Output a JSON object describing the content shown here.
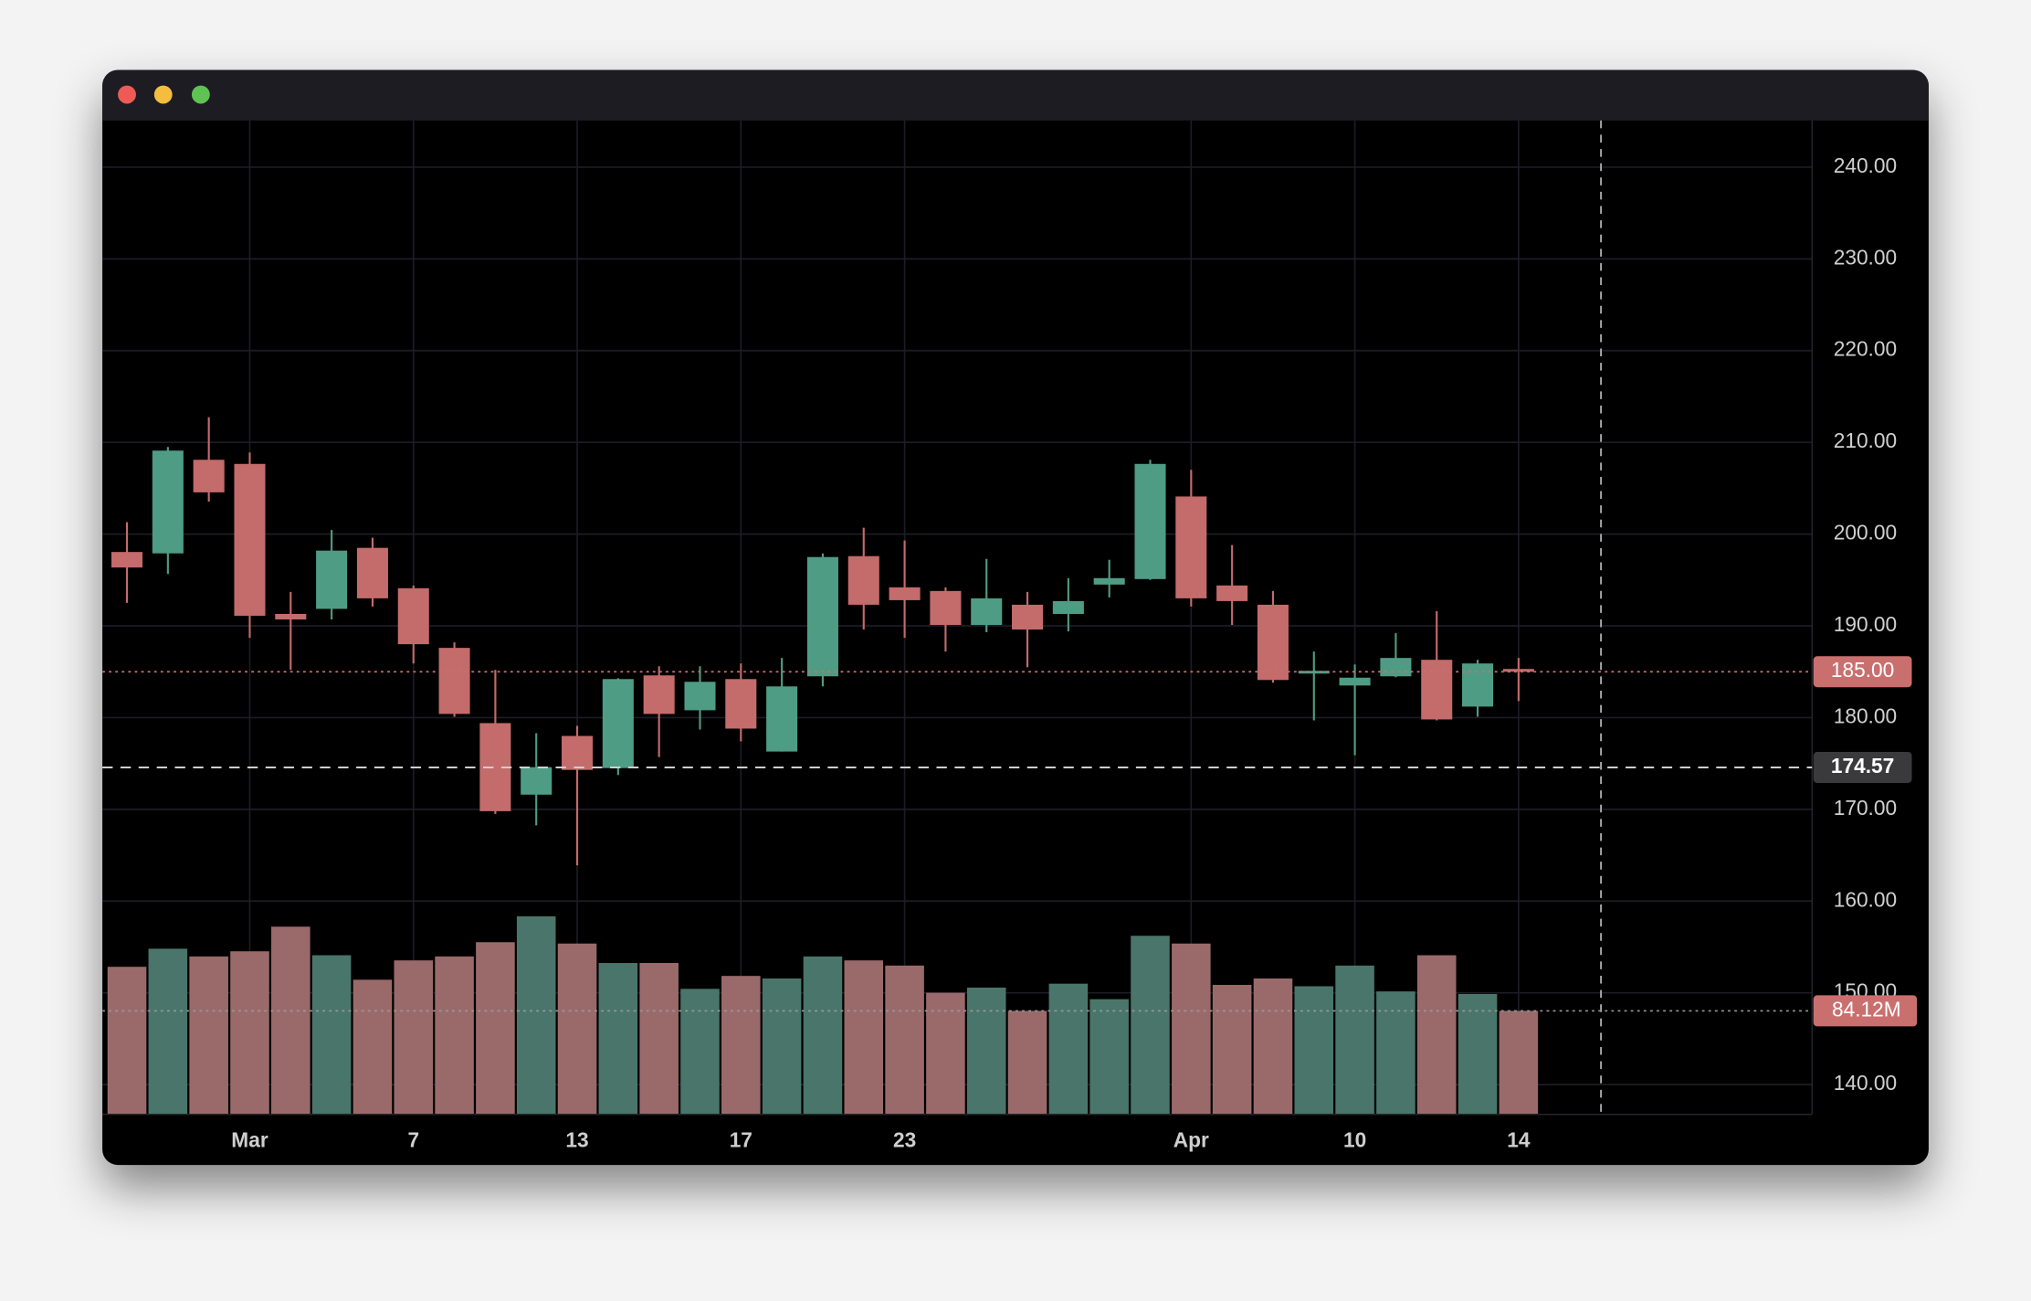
{
  "chart_data": {
    "type": "candlestick",
    "categories": [
      null,
      null,
      null,
      "Mar",
      null,
      null,
      null,
      "7",
      null,
      null,
      null,
      "13",
      null,
      null,
      null,
      "17",
      null,
      null,
      null,
      "23",
      null,
      null,
      null,
      null,
      null,
      null,
      "Apr",
      null,
      null,
      null,
      "10",
      null,
      null,
      null,
      "14"
    ],
    "open": [
      198.05,
      197.9,
      208.1,
      207.65,
      191.3,
      191.85,
      198.5,
      194.1,
      187.6,
      179.4,
      171.6,
      178.0,
      174.5,
      184.6,
      180.8,
      184.2,
      176.3,
      184.5,
      197.6,
      194.2,
      193.8,
      190.1,
      192.3,
      191.3,
      194.5,
      195.1,
      204.1,
      194.4,
      192.3,
      184.8,
      183.5,
      184.5,
      186.3,
      181.2,
      185.3
    ],
    "high": [
      201.3,
      209.5,
      212.75,
      208.9,
      193.7,
      200.45,
      199.6,
      194.4,
      188.2,
      185.2,
      178.3,
      179.1,
      184.3,
      185.6,
      185.6,
      185.9,
      186.5,
      197.9,
      200.7,
      199.3,
      194.2,
      197.3,
      193.7,
      195.2,
      197.2,
      208.1,
      207.0,
      198.8,
      193.8,
      187.2,
      185.8,
      189.2,
      191.6,
      186.3,
      186.5
    ],
    "low": [
      192.5,
      195.65,
      203.55,
      188.7,
      185.2,
      190.7,
      192.1,
      185.9,
      180.1,
      169.5,
      168.25,
      163.9,
      173.75,
      175.7,
      178.7,
      177.4,
      176.3,
      183.4,
      189.6,
      188.7,
      187.2,
      189.3,
      185.5,
      189.4,
      193.1,
      195.0,
      192.1,
      190.1,
      183.8,
      179.7,
      175.9,
      184.4,
      179.7,
      180.1,
      181.8
    ],
    "close": [
      196.36,
      209.1,
      204.55,
      191.1,
      190.7,
      198.2,
      193.0,
      188.0,
      180.4,
      169.8,
      174.6,
      174.3,
      184.2,
      180.4,
      183.9,
      178.8,
      183.4,
      197.5,
      192.3,
      192.8,
      190.1,
      193.0,
      189.6,
      192.7,
      195.2,
      207.65,
      193.0,
      192.7,
      184.1,
      185.1,
      184.35,
      186.5,
      179.8,
      185.9,
      185.0
    ],
    "up_color": "#4f9c85",
    "down_color": "#c46b6b",
    "ylim": [
      136.75,
      245.08
    ],
    "yticks": [
      {
        "value": 140,
        "label": "140.00"
      },
      {
        "value": 150,
        "label": "150.00"
      },
      {
        "value": 160,
        "label": "160.00"
      },
      {
        "value": 170,
        "label": "170.00"
      },
      {
        "value": 180,
        "label": "180.00"
      },
      {
        "value": 190,
        "label": "190.00"
      },
      {
        "value": 200,
        "label": "200.00"
      },
      {
        "value": 210,
        "label": "210.00"
      },
      {
        "value": 220,
        "label": "220.00"
      },
      {
        "value": 230,
        "label": "230.00"
      },
      {
        "value": 240,
        "label": "240.00"
      }
    ],
    "grid": true,
    "price_lines": [
      {
        "value": 185,
        "label": "185.00",
        "color": "#c9706f",
        "style": "dotted"
      },
      {
        "value": 174.57,
        "label": "174.57",
        "color": "#3a3a3c",
        "style": "dashed"
      }
    ],
    "volume": {
      "values": [
        119.9,
        134.6,
        128.3,
        132.5,
        152.5,
        129.3,
        109.4,
        125.1,
        128.3,
        139.9,
        160.9,
        138.8,
        123.0,
        123.0,
        102.0,
        112.5,
        110.4,
        128.3,
        125.1,
        120.9,
        98.8,
        103.0,
        84.1,
        106.2,
        93.6,
        145.1,
        138.8,
        105.2,
        110.4,
        104.1,
        120.9,
        99.9,
        129.3,
        97.8,
        84.12
      ],
      "ylim": [
        0,
        200
      ],
      "up_color": "#4a756a",
      "down_color": "#9a6a6a",
      "marker": {
        "value": 84.12,
        "label": "84.12M",
        "color": "#c9706f"
      }
    }
  }
}
